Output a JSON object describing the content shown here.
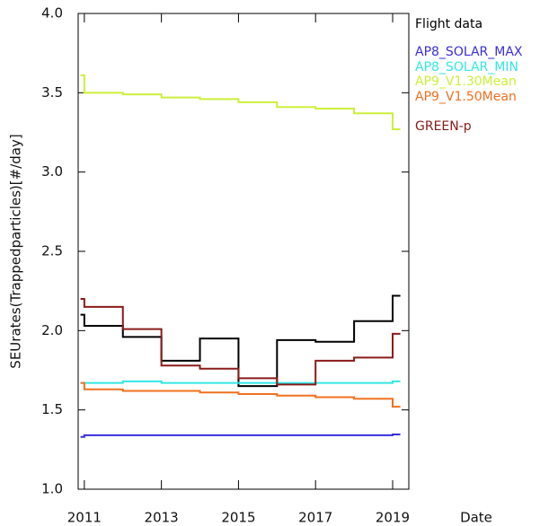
{
  "chart_data": {
    "type": "step",
    "ylabel": "SEUrates(Trappedparticles)[#/day]",
    "xlabel": "Date",
    "x": [
      2010.9,
      2011,
      2012,
      2013,
      2014,
      2015,
      2016,
      2017,
      2018,
      2019,
      2019.2
    ],
    "xlim": [
      2010.84,
      2019.42
    ],
    "xticks": [
      2011,
      2013,
      2015,
      2017,
      2019
    ],
    "ylim": [
      1,
      4
    ],
    "yticks": [
      {
        "value": 1,
        "label": "1.0"
      },
      {
        "value": 1.5,
        "label": "1.5"
      },
      {
        "value": 2,
        "label": "2.0"
      },
      {
        "value": 2.5,
        "label": "2.5"
      },
      {
        "value": 3,
        "label": "3.0"
      },
      {
        "value": 3.5,
        "label": "3.5"
      },
      {
        "value": 4,
        "label": "4.0"
      }
    ],
    "series": [
      {
        "name": "Flight data",
        "color": "#000000",
        "values": [
          2.1,
          2.03,
          1.96,
          1.81,
          1.95,
          1.65,
          1.94,
          1.93,
          2.06,
          2.22,
          2.22
        ]
      },
      {
        "name": "AP8_SOLAR_MAX",
        "color": "#3a2ee0",
        "values": [
          1.33,
          1.34,
          1.34,
          1.34,
          1.34,
          1.34,
          1.34,
          1.34,
          1.34,
          1.345,
          1.345
        ]
      },
      {
        "name": "AP8_SOLAR_MIN",
        "color": "#33e6e6",
        "values": [
          1.67,
          1.67,
          1.68,
          1.67,
          1.67,
          1.67,
          1.67,
          1.67,
          1.67,
          1.68,
          1.68
        ]
      },
      {
        "name": "AP9_V1.30Mean",
        "color": "#ccf03a",
        "values": [
          3.61,
          3.5,
          3.49,
          3.47,
          3.46,
          3.44,
          3.41,
          3.4,
          3.37,
          3.27,
          3.27
        ]
      },
      {
        "name": "AP9_V1.50Mean",
        "color": "#f07020",
        "values": [
          1.67,
          1.63,
          1.62,
          1.62,
          1.61,
          1.6,
          1.59,
          1.58,
          1.57,
          1.52,
          1.52
        ]
      },
      {
        "name": "GREEN-p",
        "color": "#8b1a1a",
        "values": [
          2.2,
          2.15,
          2.01,
          1.78,
          1.76,
          1.7,
          1.66,
          1.81,
          1.83,
          1.98,
          1.98
        ]
      }
    ]
  }
}
